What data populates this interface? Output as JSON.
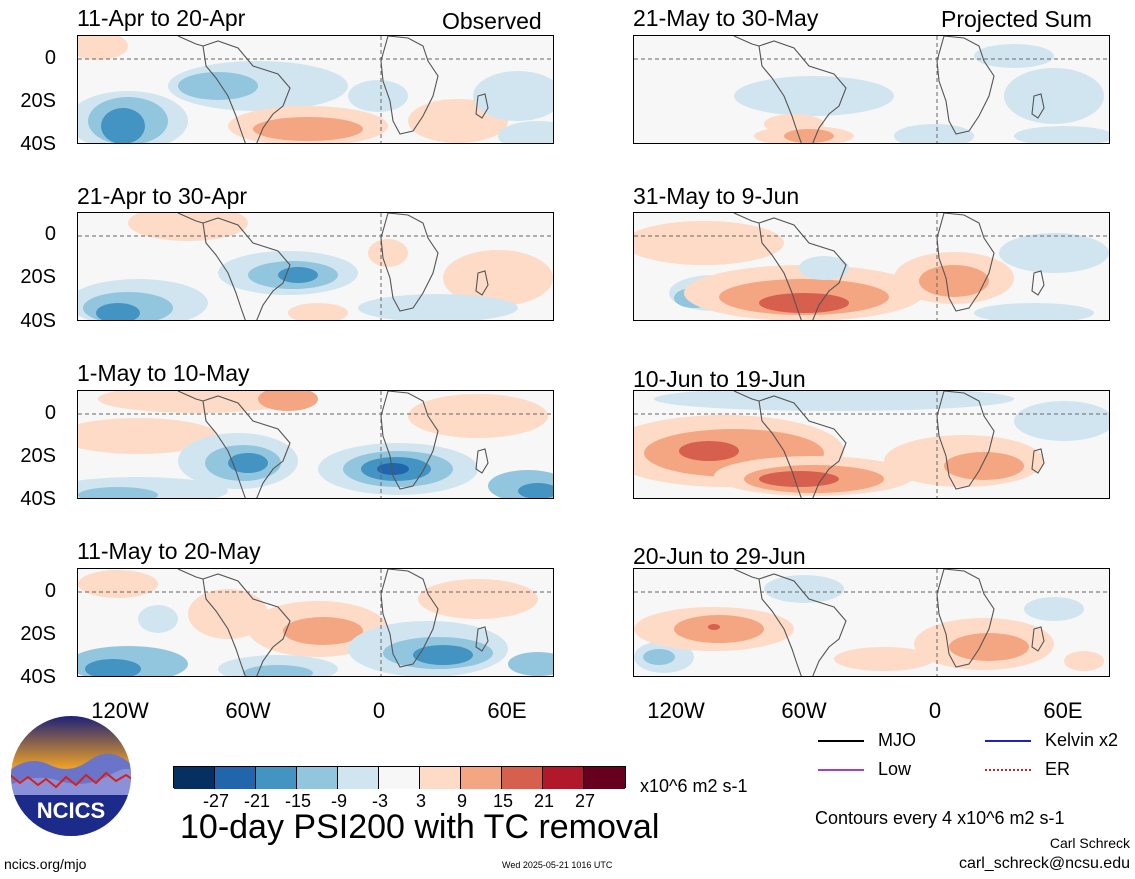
{
  "header": {
    "left_label": "Observed",
    "right_label": "Projected Sum"
  },
  "panels": {
    "p1": {
      "date_range": "11-Apr to 20-Apr"
    },
    "p2": {
      "date_range": "21-Apr to 30-Apr"
    },
    "p3": {
      "date_range": "1-May to 10-May"
    },
    "p4": {
      "date_range": "11-May to 20-May"
    },
    "p5": {
      "date_range": "21-May to 30-May"
    },
    "p6": {
      "date_range": "31-May to 9-Jun"
    },
    "p7": {
      "date_range": "10-Jun to 19-Jun"
    },
    "p8": {
      "date_range": "20-Jun to 29-Jun"
    }
  },
  "axes": {
    "lat_labels": [
      "0",
      "20S",
      "40S"
    ],
    "lon_labels": [
      "120W",
      "60W",
      "0",
      "60E"
    ]
  },
  "colorbar": {
    "ticks": [
      "-27",
      "-21",
      "-15",
      "-9",
      "-3",
      "3",
      "9",
      "15",
      "21",
      "27"
    ],
    "unit": "x10^6 m2 s-1",
    "colors": [
      "#053061",
      "#2166ac",
      "#4393c3",
      "#92c5de",
      "#d1e5f0",
      "#f7f7f7",
      "#fddbc7",
      "#f4a582",
      "#d6604d",
      "#b2182b",
      "#67001f"
    ]
  },
  "main_title": "10-day PSI200 with TC removal",
  "legend": {
    "mjo": "MJO",
    "kelvin": "Kelvin x2",
    "low": "Low",
    "er": "ER",
    "colors": {
      "mjo": "#000000",
      "kelvin": "#1f1fcc",
      "low": "#a040d0",
      "er": "#cc2020"
    }
  },
  "contour_note": "Contours every 4 x10^6 m2 s-1",
  "author": "Carl Schreck",
  "email": "carl_schreck@ncsu.edu",
  "website": "ncics.org/mjo",
  "timestamp": "Wed 2025-05-21 1016 UTC",
  "logo": {
    "text": "NCICS"
  }
}
